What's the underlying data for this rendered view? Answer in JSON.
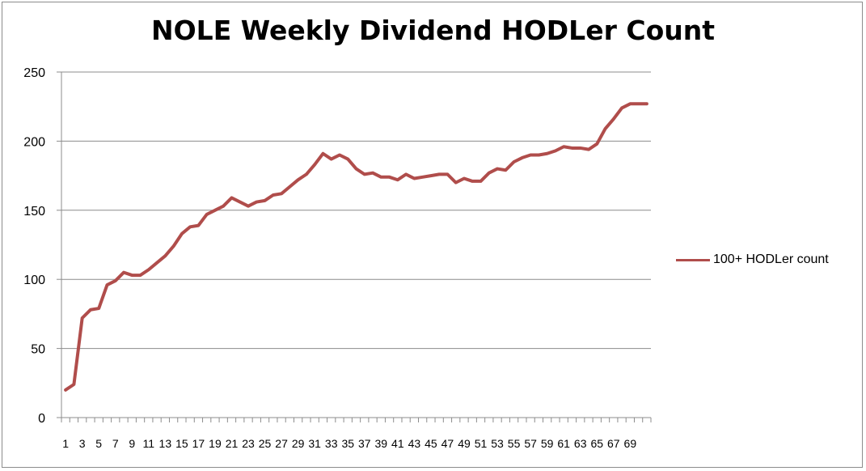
{
  "chart_data": {
    "type": "line",
    "title": "NOLE Weekly Dividend HODLer Count",
    "xlabel": "",
    "ylabel": "",
    "ylim": [
      0,
      250
    ],
    "yticks": [
      0,
      50,
      100,
      150,
      200,
      250
    ],
    "grid": true,
    "legend_position": "right",
    "x": [
      1,
      2,
      3,
      4,
      5,
      6,
      7,
      8,
      9,
      10,
      11,
      12,
      13,
      14,
      15,
      16,
      17,
      18,
      19,
      20,
      21,
      22,
      23,
      24,
      25,
      26,
      27,
      28,
      29,
      30,
      31,
      32,
      33,
      34,
      35,
      36,
      37,
      38,
      39,
      40,
      41,
      42,
      43,
      44,
      45,
      46,
      47,
      48,
      49,
      50,
      51,
      52,
      53,
      54,
      55,
      56,
      57,
      58,
      59,
      60,
      61,
      62,
      63,
      64,
      65,
      66,
      67,
      68,
      69,
      70,
      71
    ],
    "xtick_labels": [
      "1",
      "3",
      "5",
      "7",
      "9",
      "11",
      "13",
      "15",
      "17",
      "19",
      "21",
      "23",
      "25",
      "27",
      "29",
      "31",
      "33",
      "35",
      "37",
      "39",
      "41",
      "43",
      "45",
      "47",
      "49",
      "51",
      "53",
      "55",
      "57",
      "59",
      "61",
      "63",
      "65",
      "67",
      "69"
    ],
    "series": [
      {
        "name": "100+ HODLer count",
        "color": "#b04d4b",
        "values": [
          20,
          24,
          72,
          78,
          79,
          96,
          99,
          105,
          103,
          103,
          107,
          112,
          117,
          124,
          133,
          138,
          139,
          147,
          150,
          153,
          159,
          156,
          153,
          156,
          157,
          161,
          162,
          167,
          172,
          176,
          183,
          191,
          187,
          190,
          187,
          180,
          176,
          177,
          174,
          174,
          172,
          176,
          173,
          174,
          175,
          176,
          176,
          170,
          173,
          171,
          171,
          177,
          180,
          179,
          185,
          188,
          190,
          190,
          191,
          193,
          196,
          195,
          195,
          194,
          198,
          209,
          216,
          224,
          227,
          227,
          227
        ]
      }
    ]
  }
}
